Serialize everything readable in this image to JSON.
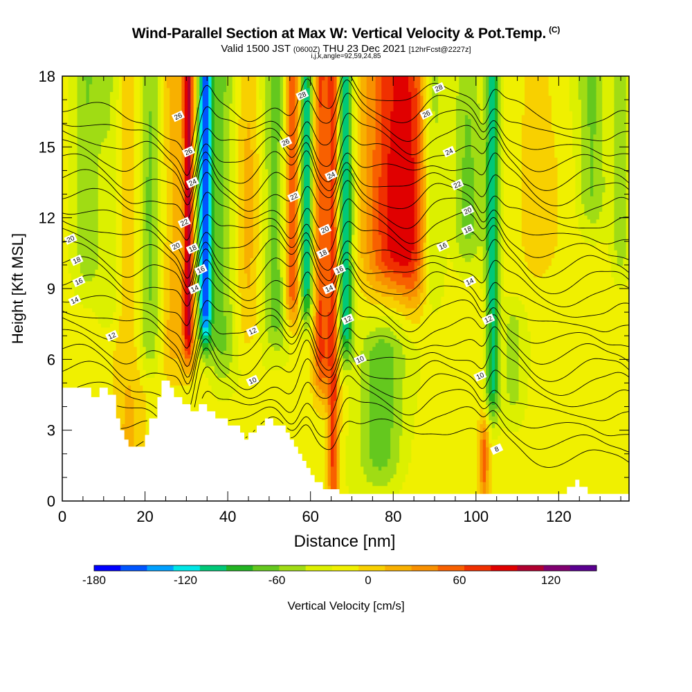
{
  "header": {
    "title": "Wind-Parallel Section at Max W: Vertical Velocity & Pot.Temp.",
    "copyright_mark": "(C)",
    "valid_prefix": "Valid 1500 JST",
    "valid_utc": "(0600Z)",
    "valid_date": "THU 23 Dec 2021",
    "forecast_info": "[12hrFcst@2227z]",
    "indices": "i,j,k,angle=92,59,24,85"
  },
  "chart_data": {
    "type": "heatmap",
    "xlabel": "Distance [nm]",
    "ylabel": "Height [Kft MSL]",
    "xlim": [
      0,
      137
    ],
    "ylim": [
      0,
      18
    ],
    "x_ticks": [
      0,
      20,
      40,
      60,
      80,
      100,
      120
    ],
    "y_ticks": [
      0,
      3,
      6,
      9,
      12,
      15,
      18
    ],
    "colorbar": {
      "label": "Vertical Velocity [cm/s]",
      "range": [
        -180,
        150
      ],
      "step": 20,
      "tick_labels": [
        -180,
        -120,
        -60,
        0,
        60,
        120
      ],
      "colors": [
        "#0000ff",
        "#0055ff",
        "#00a0ff",
        "#00e6e6",
        "#00c878",
        "#22b422",
        "#64c81e",
        "#a0dc14",
        "#dcf000",
        "#f0f000",
        "#f8d000",
        "#f8b000",
        "#f89000",
        "#f86000",
        "#f03000",
        "#e00000",
        "#b00030",
        "#800070",
        "#5a0090"
      ]
    },
    "velocity_bands": [
      {
        "x": 30.5,
        "w": 0.9,
        "v": 130,
        "z0": 6.5
      },
      {
        "x": 34.5,
        "w": 1.2,
        "v": -150,
        "z0": 7
      },
      {
        "x": 27,
        "w": 2.5,
        "v": 40,
        "z0": 6
      },
      {
        "x": 38.5,
        "w": 2.2,
        "v": -50,
        "z0": 5.5
      },
      {
        "x": 21,
        "w": 2.2,
        "v": -60,
        "z0": 6
      },
      {
        "x": 16,
        "w": 3,
        "v": 35,
        "z0": 1.5
      },
      {
        "x": 55.5,
        "w": 1.5,
        "v": 110,
        "z0": 8
      },
      {
        "x": 59,
        "w": 1.1,
        "v": -110,
        "z0": 8
      },
      {
        "x": 62.5,
        "w": 1.3,
        "v": 90,
        "z0": 5
      },
      {
        "x": 65.5,
        "w": 1,
        "v": 100,
        "z0": 0
      },
      {
        "x": 68.5,
        "w": 1.3,
        "v": -110,
        "z0": 6.5
      },
      {
        "x": 52,
        "w": 2.5,
        "v": -60,
        "z0": 7
      },
      {
        "x": 77,
        "w": 4,
        "v": -60,
        "z0": 1,
        "z1": 7
      },
      {
        "x": 80,
        "w": 5,
        "v": 110,
        "z0": 9.5
      },
      {
        "x": 85,
        "w": 2.5,
        "v": 40,
        "z0": 8
      },
      {
        "x": 89.5,
        "w": 1.8,
        "v": -50,
        "z0": 9
      },
      {
        "x": 104,
        "w": 1.2,
        "v": -100,
        "z0": 4
      },
      {
        "x": 102,
        "w": 0.9,
        "v": 80,
        "z0": 0,
        "z1": 3.2
      },
      {
        "x": 98,
        "w": 2.5,
        "v": -50,
        "z0": 10.5
      },
      {
        "x": 109,
        "w": 2,
        "v": -40,
        "z0": 4,
        "z1": 8
      },
      {
        "x": 6,
        "w": 2.5,
        "v": -45,
        "z0": 9.5
      },
      {
        "x": 12,
        "w": 2,
        "v": -35,
        "z0": 8
      },
      {
        "x": 128,
        "w": 2.5,
        "v": -50,
        "z0": 12
      },
      {
        "x": 135,
        "w": 1.5,
        "v": -40,
        "z0": 10
      },
      {
        "x": 45,
        "w": 2,
        "v": 35,
        "z0": 7
      },
      {
        "x": 115,
        "w": 3,
        "v": 25,
        "z0": 10
      }
    ],
    "terrain": {
      "x": [
        0,
        7,
        7,
        9,
        9,
        11,
        11,
        13,
        13,
        14,
        14,
        15,
        15,
        16,
        16,
        20,
        20,
        21,
        21,
        23,
        23,
        24,
        24,
        26,
        26,
        27,
        27,
        29,
        29,
        31,
        31,
        33,
        33,
        35,
        35,
        37,
        37,
        40,
        40,
        43,
        43,
        44,
        44,
        45,
        45,
        47,
        47,
        49,
        49,
        51,
        51,
        54,
        54,
        55,
        55,
        56,
        56,
        57,
        57,
        58,
        58,
        59,
        59,
        60,
        60,
        61,
        61,
        63,
        63,
        67,
        67,
        70,
        70,
        122,
        122,
        124,
        124,
        125,
        125,
        127,
        127,
        137
      ],
      "z": [
        4.8,
        4.8,
        4.4,
        4.4,
        4.8,
        4.8,
        4.5,
        4.5,
        3.5,
        3.5,
        3.0,
        3.0,
        2.6,
        2.6,
        2.3,
        2.3,
        2.8,
        2.8,
        3.5,
        3.5,
        4.4,
        4.4,
        5.1,
        5.1,
        4.8,
        4.8,
        4.4,
        4.4,
        4.1,
        4.1,
        3.8,
        3.8,
        4.1,
        4.1,
        3.8,
        3.8,
        3.5,
        3.5,
        3.2,
        3.2,
        2.9,
        2.9,
        2.6,
        2.6,
        2.9,
        2.9,
        3.2,
        3.2,
        3.5,
        3.5,
        3.2,
        3.2,
        2.9,
        2.9,
        2.6,
        2.6,
        2.3,
        2.3,
        2.0,
        2.0,
        1.7,
        1.7,
        1.4,
        1.4,
        1.1,
        1.1,
        0.8,
        0.8,
        0.5,
        0.5,
        0.3,
        0.3,
        0.3,
        0.3,
        0.6,
        0.6,
        0.9,
        0.9,
        0.6,
        0.6,
        0.3,
        0.3
      ]
    },
    "theta_contour_levels": [
      8,
      10,
      12,
      14,
      16,
      18,
      20,
      22,
      24,
      26,
      28
    ],
    "theta_contour_labels": [
      {
        "text": "8",
        "x": 105,
        "z": 2.2
      },
      {
        "text": "10",
        "x": 46,
        "z": 5.1
      },
      {
        "text": "10",
        "x": 72,
        "z": 6
      },
      {
        "text": "10",
        "x": 101,
        "z": 5.3
      },
      {
        "text": "12",
        "x": 12,
        "z": 7
      },
      {
        "text": "12",
        "x": 46,
        "z": 7.2
      },
      {
        "text": "12",
        "x": 69,
        "z": 7.7
      },
      {
        "text": "12",
        "x": 103,
        "z": 7.7
      },
      {
        "text": "14",
        "x": 3,
        "z": 8.5
      },
      {
        "text": "14",
        "x": 32,
        "z": 9
      },
      {
        "text": "14",
        "x": 64.5,
        "z": 9
      },
      {
        "text": "14",
        "x": 98.5,
        "z": 9.3
      },
      {
        "text": "16",
        "x": 4,
        "z": 9.3
      },
      {
        "text": "16",
        "x": 33.5,
        "z": 9.8
      },
      {
        "text": "16",
        "x": 67,
        "z": 9.8
      },
      {
        "text": "16",
        "x": 92,
        "z": 10.8
      },
      {
        "text": "18",
        "x": 3.5,
        "z": 10.2
      },
      {
        "text": "18",
        "x": 31.5,
        "z": 10.7
      },
      {
        "text": "18",
        "x": 63,
        "z": 10.5
      },
      {
        "text": "18",
        "x": 98,
        "z": 11.5
      },
      {
        "text": "20",
        "x": 2,
        "z": 11.1
      },
      {
        "text": "20",
        "x": 27.5,
        "z": 10.8
      },
      {
        "text": "20",
        "x": 63.5,
        "z": 11.5
      },
      {
        "text": "20",
        "x": 98,
        "z": 12.3
      },
      {
        "text": "22",
        "x": 29.5,
        "z": 11.8
      },
      {
        "text": "22",
        "x": 56,
        "z": 12.9
      },
      {
        "text": "22",
        "x": 95.5,
        "z": 13.4
      },
      {
        "text": "24",
        "x": 31.5,
        "z": 13.5
      },
      {
        "text": "24",
        "x": 65,
        "z": 13.8
      },
      {
        "text": "24",
        "x": 93.5,
        "z": 14.8
      },
      {
        "text": "26",
        "x": 30.5,
        "z": 14.8
      },
      {
        "text": "26",
        "x": 54,
        "z": 15.2
      },
      {
        "text": "26",
        "x": 88,
        "z": 16.4
      },
      {
        "text": "26",
        "x": 28,
        "z": 16.3
      },
      {
        "text": "28",
        "x": 58,
        "z": 17.2
      },
      {
        "text": "28",
        "x": 91,
        "z": 17.5
      }
    ]
  }
}
